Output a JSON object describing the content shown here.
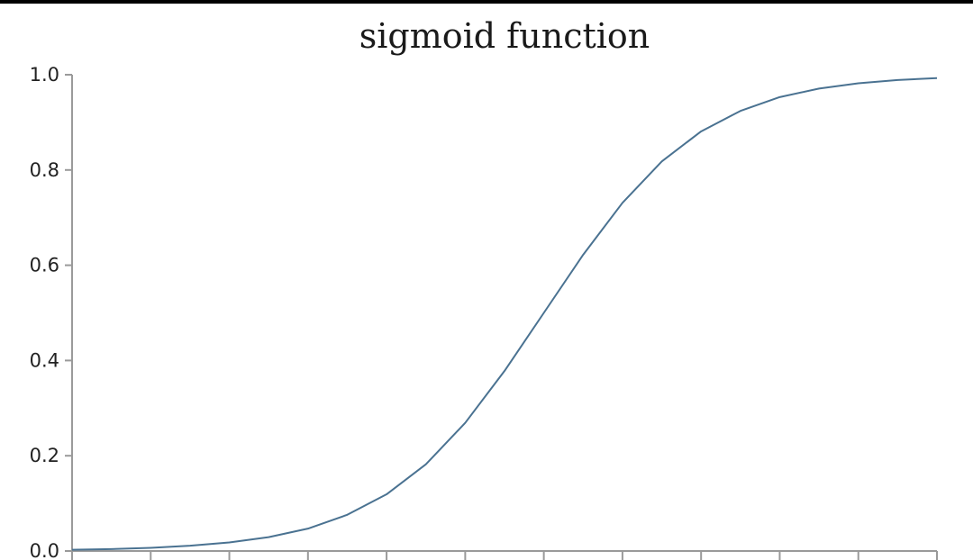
{
  "chart_data": {
    "type": "line",
    "title": "sigmoid function",
    "xlabel": "",
    "ylabel": "",
    "xlim": [
      -6,
      5
    ],
    "ylim": [
      0,
      1
    ],
    "x_tick_values": [
      -6,
      -5,
      -4,
      -3,
      -2,
      -1,
      0,
      1,
      2,
      3,
      4,
      5
    ],
    "y_ticks": [
      "0.0",
      "0.2",
      "0.4",
      "0.6",
      "0.8",
      "1.0"
    ],
    "y_tick_values": [
      0,
      0.2,
      0.4,
      0.6,
      0.8,
      1.0
    ],
    "grid": false,
    "colors": {
      "line": "#4a7291",
      "axis": "#9a9a9a",
      "background": "#ffffff",
      "frame": "#000000"
    },
    "series": [
      {
        "x": [
          -6,
          -5.5,
          -5,
          -4.5,
          -4,
          -3.5,
          -3,
          -2.5,
          -2,
          -1.5,
          -1,
          -0.5,
          0,
          0.5,
          1,
          1.5,
          2,
          2.5,
          3,
          3.5,
          4,
          4.5,
          5
        ],
        "y": [
          0.0025,
          0.0041,
          0.0067,
          0.011,
          0.018,
          0.029,
          0.047,
          0.076,
          0.119,
          0.182,
          0.269,
          0.378,
          0.5,
          0.622,
          0.731,
          0.818,
          0.881,
          0.924,
          0.953,
          0.971,
          0.982,
          0.989,
          0.993
        ]
      }
    ]
  }
}
